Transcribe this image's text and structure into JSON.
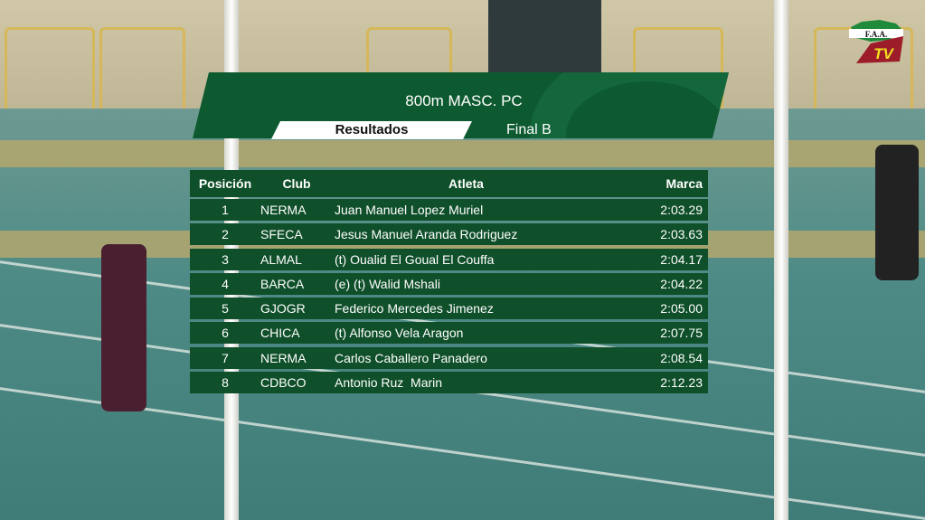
{
  "logo": {
    "text": "F.A.A.",
    "sub": "TV",
    "colors": {
      "green": "#1e8a3a",
      "red": "#9c1c2a",
      "yellow": "#f0e020"
    }
  },
  "header": {
    "title": "800m MASC. PC",
    "tab": "Resultados",
    "round": "Final B"
  },
  "table": {
    "columns": [
      "Posición",
      "Club",
      "Atleta",
      "Marca"
    ],
    "rows": [
      [
        "1",
        "NERMA",
        "Juan Manuel Lopez Muriel",
        "2:03.29"
      ],
      [
        "2",
        "SFECA",
        "Jesus Manuel Aranda Rodriguez",
        "2:03.63"
      ],
      [
        "3",
        "ALMAL",
        "(t) Oualid El Goual El Couffa",
        "2:04.17"
      ],
      [
        "4",
        "BARCA",
        "(e) (t) Walid Mshali",
        "2:04.22"
      ],
      [
        "5",
        "GJOGR",
        "Federico Mercedes Jimenez",
        "2:05.00"
      ],
      [
        "6",
        "CHICA",
        "(t) Alfonso Vela Aragon",
        "2:07.75"
      ],
      [
        "7",
        "NERMA",
        "Carlos Caballero Panadero",
        "2:08.54"
      ],
      [
        "8",
        "CDBCO",
        "Antonio Ruz  Marin",
        "2:12.23"
      ]
    ]
  },
  "colors": {
    "panel": "#0f4f2a",
    "header": "#0e5a30"
  }
}
